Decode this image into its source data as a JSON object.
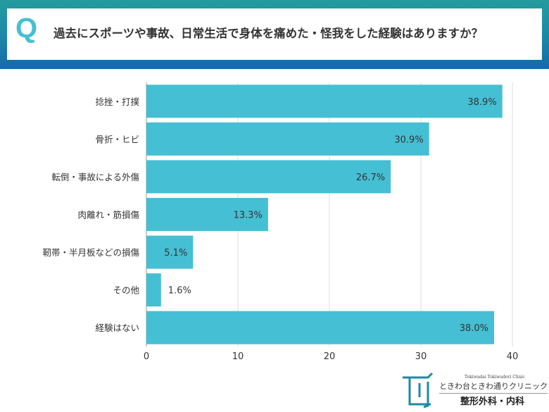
{
  "header": {
    "q_mark": "Q",
    "title": "過去にスポーツや事故、日常生活で身体を痛めた・怪我をした経験はありますか？"
  },
  "colors": {
    "bar": "#45bfd3",
    "header_top": "#239b9f",
    "header_bottom": "#1569aa",
    "q_mark": "#45bfd3"
  },
  "chart_data": {
    "type": "bar",
    "orientation": "horizontal",
    "categories": [
      "捻挫・打撲",
      "骨折・ヒビ",
      "転倒・事故による外傷",
      "肉離れ・筋損傷",
      "靭帯・半月板などの損傷",
      "その他",
      "経験はない"
    ],
    "values": [
      38.9,
      30.9,
      26.7,
      13.3,
      5.1,
      1.6,
      38.0
    ],
    "data_labels": [
      "38.9%",
      "30.9%",
      "26.7%",
      "13.3%",
      "5.1%",
      "1.6%",
      "38.0%"
    ],
    "xlim": [
      0,
      40
    ],
    "xticks": [
      "0",
      "10",
      "20",
      "30",
      "40"
    ],
    "grid": true,
    "unit": "%"
  },
  "logo": {
    "en": "Tokiwadai Tokiwadori Clinic",
    "jp": "ときわ台ときわ通りクリニック",
    "sub": "整形外科・内科"
  }
}
